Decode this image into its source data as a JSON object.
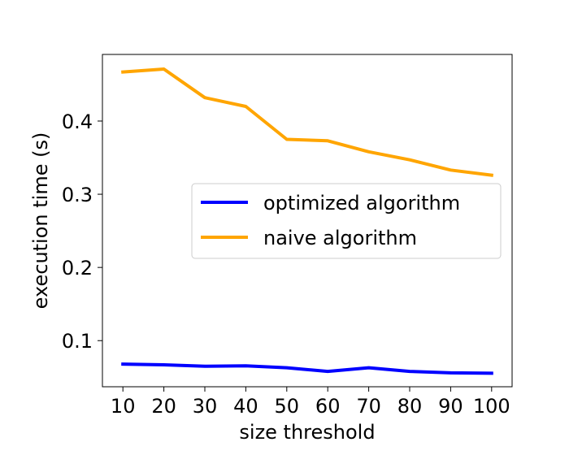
{
  "chart_data": {
    "type": "line",
    "xlabel": "size threshold",
    "ylabel": "execution time (s)",
    "x": [
      10,
      20,
      30,
      40,
      50,
      60,
      70,
      80,
      90,
      100
    ],
    "xticks": [
      "10",
      "20",
      "30",
      "40",
      "50",
      "60",
      "70",
      "80",
      "90",
      "100"
    ],
    "yticks": [
      "0.1",
      "0.2",
      "0.3",
      "0.4"
    ],
    "ytick_values": [
      0.1,
      0.2,
      0.3,
      0.4
    ],
    "xlim": [
      5,
      105
    ],
    "ylim": [
      0.037,
      0.491
    ],
    "grid": false,
    "legend_position": "center-right",
    "series": [
      {
        "name": "optimized algorithm",
        "color": "#0000ff",
        "values": [
          0.068,
          0.067,
          0.065,
          0.0655,
          0.063,
          0.058,
          0.063,
          0.058,
          0.056,
          0.0555
        ]
      },
      {
        "name": "naive algorithm",
        "color": "#ffa500",
        "values": [
          0.467,
          0.471,
          0.432,
          0.42,
          0.375,
          0.373,
          0.358,
          0.347,
          0.333,
          0.326
        ]
      }
    ]
  }
}
